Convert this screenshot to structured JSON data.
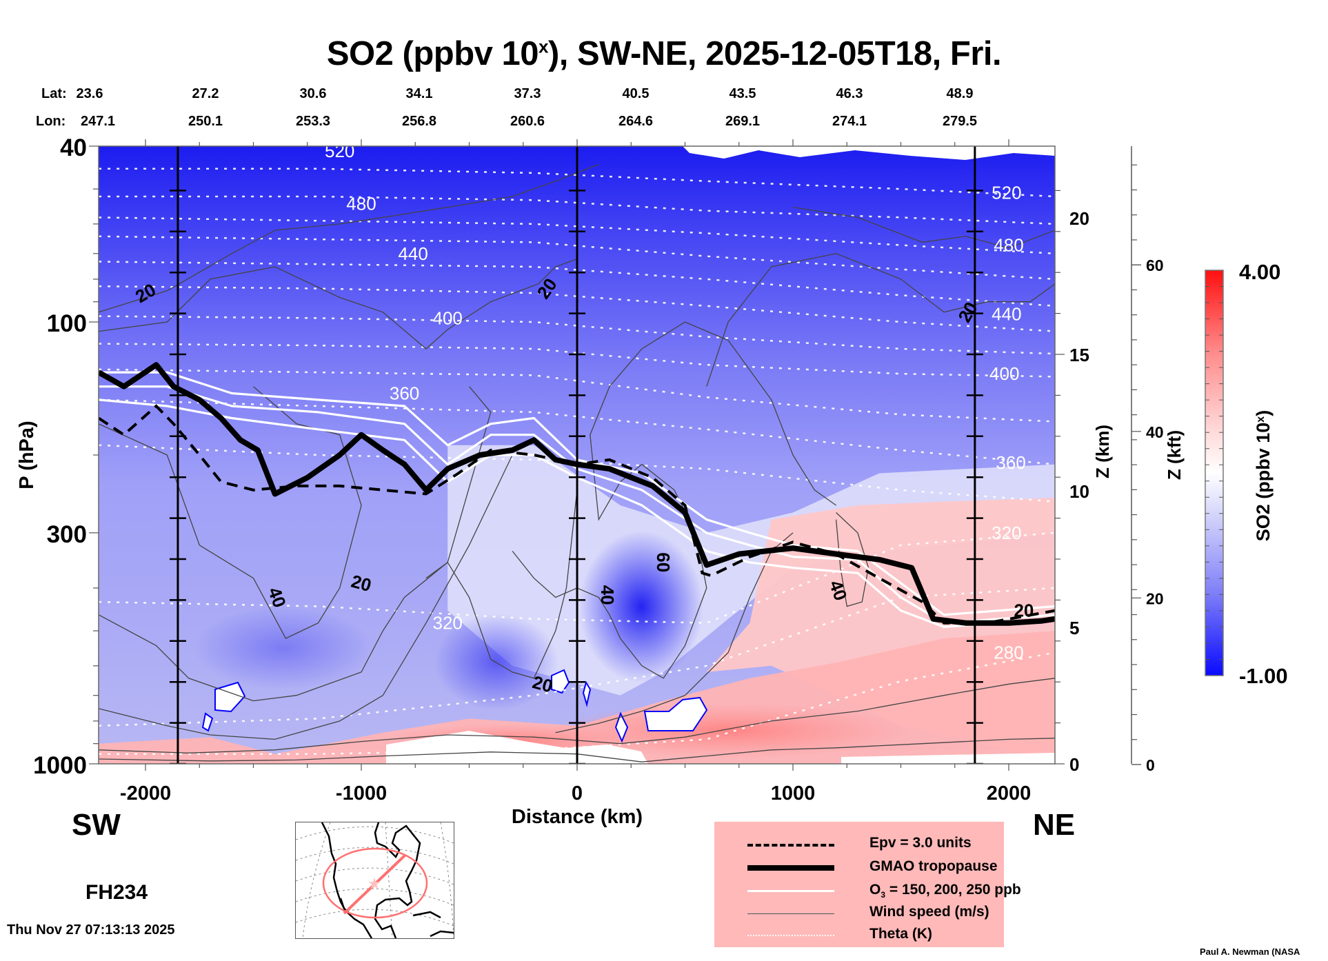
{
  "title": {
    "prefix": "SO2 (ppbv 10",
    "superscript": "x",
    "suffix": "), SW-NE, 2025-12-05T18, Fri."
  },
  "lat_lon": {
    "lat_label": "Lat:",
    "lon_label": "Lon:",
    "lat": [
      "23.6",
      "27.2",
      "30.6",
      "34.1",
      "37.3",
      "40.5",
      "43.5",
      "46.3",
      "48.9"
    ],
    "lon": [
      "247.1",
      "250.1",
      "253.3",
      "256.8",
      "260.6",
      "264.6",
      "269.1",
      "274.1",
      "279.5"
    ]
  },
  "direction_labels": {
    "left": "SW",
    "right": "NE"
  },
  "forecast_hour": "FH234",
  "timestamp": "Thu Nov 27 07:13:13 2025",
  "credit": "Paul A. Newman (NASA",
  "legend": {
    "items": [
      {
        "label": "Epv = 3.0 units",
        "style": "dashed-black"
      },
      {
        "label": "GMAO tropopause",
        "style": "thick-black"
      },
      {
        "label_main": "O",
        "label_sub": "3",
        "label_rest": " = 150, 200, 250 ppb",
        "style": "white"
      },
      {
        "label": "Wind speed (m/s)",
        "style": "thin-gray"
      },
      {
        "label": "Theta (K)",
        "style": "dotted-white"
      }
    ]
  },
  "colorbar": {
    "max_label": "4.00",
    "min_label": "-1.00",
    "title_prefix": "SO2 (ppbv 10",
    "title_sup": "x",
    "title_suffix": ")",
    "low_color": "#0000ff",
    "mid_color": "#ffffff",
    "high_color": "#ff0000"
  },
  "chart_data": {
    "type": "heatmap",
    "title": "SO2 (ppbv 10^x), SW-NE, 2025-12-05T18, Fri.",
    "xlabel": "Distance (km)",
    "ylabel": "P (hPa)",
    "y2label": "Z (km)",
    "y3label": "Z (kft)",
    "xlim": [
      -2217,
      2214
    ],
    "ylim": [
      1000,
      40
    ],
    "yscale": "log",
    "x_ticks": [
      -2000,
      -1000,
      0,
      1000,
      2000
    ],
    "x_tick_labels": [
      "-2000",
      "-1000",
      "0",
      "1000",
      "2000"
    ],
    "y_ticks": [
      40,
      100,
      300,
      1000
    ],
    "y_tick_labels": [
      "40",
      "100",
      "300",
      "1000"
    ],
    "z_km_ticks": [
      0,
      5,
      10,
      15,
      20
    ],
    "z_km_range": [
      0,
      22.6
    ],
    "z_kft_ticks": [
      0,
      20,
      40,
      60
    ],
    "z_kft_range": [
      0,
      77
    ],
    "colorbar_range": [
      -1.0,
      4.0
    ],
    "reference_lines_km": [
      -1850,
      0,
      1843
    ],
    "theta_levels_K": [
      280,
      300,
      320,
      340,
      360,
      380,
      400,
      420,
      440,
      460,
      480,
      500,
      520,
      540
    ],
    "theta_labels": [
      {
        "value": "520",
        "x": -1100,
        "p": 41
      },
      {
        "value": "480",
        "x": -1000,
        "p": 54
      },
      {
        "value": "440",
        "x": -760,
        "p": 70
      },
      {
        "value": "400",
        "x": -600,
        "p": 98
      },
      {
        "value": "360",
        "x": -800,
        "p": 145
      },
      {
        "value": "320",
        "x": -600,
        "p": 480
      },
      {
        "value": "520",
        "x": 1990,
        "p": 51
      },
      {
        "value": "480",
        "x": 2000,
        "p": 67
      },
      {
        "value": "440",
        "x": 1990,
        "p": 96
      },
      {
        "value": "400",
        "x": 1980,
        "p": 131
      },
      {
        "value": "360",
        "x": 2010,
        "p": 208
      },
      {
        "value": "320",
        "x": 1990,
        "p": 300
      },
      {
        "value": "280",
        "x": 2000,
        "p": 560
      }
    ],
    "theta_lines": [
      {
        "K": 540,
        "p": [
          45,
          45,
          46,
          48,
          50,
          52
        ]
      },
      {
        "K": 520,
        "p": [
          52,
          52,
          53,
          56,
          58,
          60
        ]
      },
      {
        "K": 500,
        "p": [
          58,
          59,
          60,
          63,
          67,
          70
        ]
      },
      {
        "K": 480,
        "p": [
          64,
          65,
          66,
          71,
          76,
          80
        ]
      },
      {
        "K": 460,
        "p": [
          73,
          74,
          75,
          80,
          87,
          92
        ]
      },
      {
        "K": 440,
        "p": [
          83,
          84,
          86,
          92,
          100,
          105
        ]
      },
      {
        "K": 420,
        "p": [
          97,
          98,
          100,
          108,
          115,
          118
        ]
      },
      {
        "K": 400,
        "p": [
          112,
          113,
          115,
          125,
          131,
          133
        ]
      },
      {
        "K": 380,
        "p": [
          128,
          130,
          132,
          148,
          162,
          168
        ]
      },
      {
        "K": 360,
        "p": [
          150,
          155,
          160,
          175,
          195,
          210
        ]
      },
      {
        "K": 340,
        "p": [
          190,
          200,
          205,
          215,
          240,
          255
        ]
      },
      {
        "K": 320,
        "p": [
          430,
          440,
          470,
          480,
          320,
          300
        ]
      },
      {
        "K": 300,
        "p": [
          820,
          790,
          700,
          600,
          420,
          400
        ]
      },
      {
        "K": 280,
        "p": [
          950,
          950,
          930,
          880,
          650,
          560
        ]
      }
    ],
    "theta_x_nodes_km": [
      -2217,
      -1200,
      -200,
      600,
      1500,
      2214
    ],
    "wind_labels": [
      {
        "value": "20",
        "x": -2000,
        "p": 86,
        "rot": -30
      },
      {
        "value": "40",
        "x": -1390,
        "p": 420,
        "rot": 70
      },
      {
        "value": "20",
        "x": -1000,
        "p": 390,
        "rot": 15
      },
      {
        "value": "20",
        "x": -140,
        "p": 84,
        "rot": -55
      },
      {
        "value": "20",
        "x": -160,
        "p": 660,
        "rot": 15
      },
      {
        "value": "40",
        "x": 140,
        "p": 415,
        "rot": 90
      },
      {
        "value": "60",
        "x": 400,
        "p": 350,
        "rot": 90
      },
      {
        "value": "40",
        "x": 1210,
        "p": 405,
        "rot": 70
      },
      {
        "value": "20",
        "x": 1810,
        "p": 95,
        "rot": -60
      },
      {
        "value": "20",
        "x": 2070,
        "p": 450,
        "rot": 0
      }
    ],
    "tropopause_gmao": {
      "x": [
        -2217,
        -2100,
        -1950,
        -1870,
        -1750,
        -1650,
        -1560,
        -1480,
        -1400,
        -1250,
        -1100,
        -1000,
        -900,
        -800,
        -700,
        -600,
        -450,
        -300,
        -200,
        -100,
        0,
        150,
        350,
        500,
        600,
        750,
        1000,
        1200,
        1400,
        1550,
        1650,
        1800,
        2000,
        2150,
        2214
      ],
      "p": [
        130,
        140,
        125,
        140,
        150,
        165,
        185,
        195,
        245,
        225,
        200,
        180,
        195,
        210,
        240,
        215,
        200,
        195,
        185,
        205,
        210,
        215,
        235,
        270,
        355,
        335,
        325,
        335,
        345,
        360,
        470,
        480,
        480,
        475,
        470
      ]
    },
    "epv_3": {
      "x": [
        -2217,
        -2100,
        -1950,
        -1870,
        -1750,
        -1650,
        -1500,
        -1300,
        -1100,
        -900,
        -700,
        -550,
        -400,
        -200,
        0,
        150,
        350,
        500,
        580,
        620,
        800,
        1000,
        1200,
        1400,
        1600,
        1700,
        1900,
        2214
      ],
      "p": [
        165,
        180,
        155,
        170,
        200,
        230,
        240,
        235,
        235,
        240,
        245,
        220,
        195,
        200,
        210,
        205,
        225,
        260,
        370,
        375,
        340,
        315,
        335,
        380,
        430,
        480,
        480,
        450
      ]
    },
    "ozone_lines": [
      {
        "ppb": 150,
        "x": [
          -2217,
          -1900,
          -1600,
          -1200,
          -800,
          -600,
          -400,
          -200,
          0,
          300,
          600,
          800,
          1000,
          1300,
          1500,
          1700,
          2214
        ],
        "p": [
          130,
          130,
          145,
          150,
          155,
          190,
          170,
          165,
          205,
          220,
          280,
          300,
          320,
          330,
          390,
          460,
          440
        ]
      },
      {
        "ppb": 200,
        "x": [
          -2217,
          -1900,
          -1600,
          -1200,
          -800,
          -600,
          -400,
          -200,
          0,
          300,
          600,
          800,
          1000,
          1300,
          1500,
          1700,
          2214
        ],
        "p": [
          140,
          140,
          155,
          160,
          170,
          210,
          180,
          180,
          215,
          240,
          300,
          320,
          340,
          345,
          420,
          480,
          460
        ]
      },
      {
        "ppb": 250,
        "x": [
          -2217,
          -1900,
          -1600,
          -1200,
          -800,
          -600,
          -400,
          -200,
          0,
          300,
          600,
          800,
          1000,
          1300,
          1500,
          1700,
          2214
        ],
        "p": [
          150,
          155,
          165,
          175,
          185,
          230,
          200,
          200,
          225,
          260,
          330,
          350,
          360,
          370,
          450,
          490,
          470
        ]
      }
    ],
    "so2_field_description": "Upper troposphere/stratosphere mostly negative (blue, -1 to 0) decreasing in intensity downward; strong positive values (red, up to ~2.5) in lower troposphere east of -400 km below ~600 hPa and in the 300-700 hPa layer east of 1200 km; strongest blue core near 100-300 km at 500-700 hPa."
  }
}
